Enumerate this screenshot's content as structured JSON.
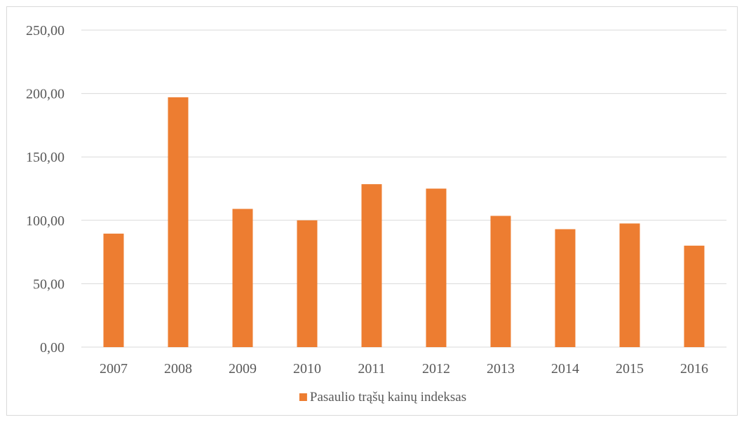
{
  "chart_data": {
    "type": "bar",
    "title": "",
    "xlabel": "",
    "ylabel": "",
    "categories": [
      "2007",
      "2008",
      "2009",
      "2010",
      "2011",
      "2012",
      "2013",
      "2014",
      "2015",
      "2016"
    ],
    "series": [
      {
        "name": "Pasaulio trąšų kainų indeksas",
        "values": [
          89.5,
          197,
          109,
          100,
          128.5,
          125,
          103.5,
          93,
          97.5,
          80
        ],
        "color": "#ED7D31"
      }
    ],
    "ylim": [
      0,
      250
    ],
    "yticks": [
      "0,00",
      "50,00",
      "100,00",
      "150,00",
      "200,00",
      "250,00"
    ],
    "ytick_values": [
      0,
      50,
      100,
      150,
      200,
      250
    ],
    "grid": true,
    "gridline_color": "#d9d9d9",
    "axis_label_color": "#595959",
    "legend_position": "bottom"
  }
}
